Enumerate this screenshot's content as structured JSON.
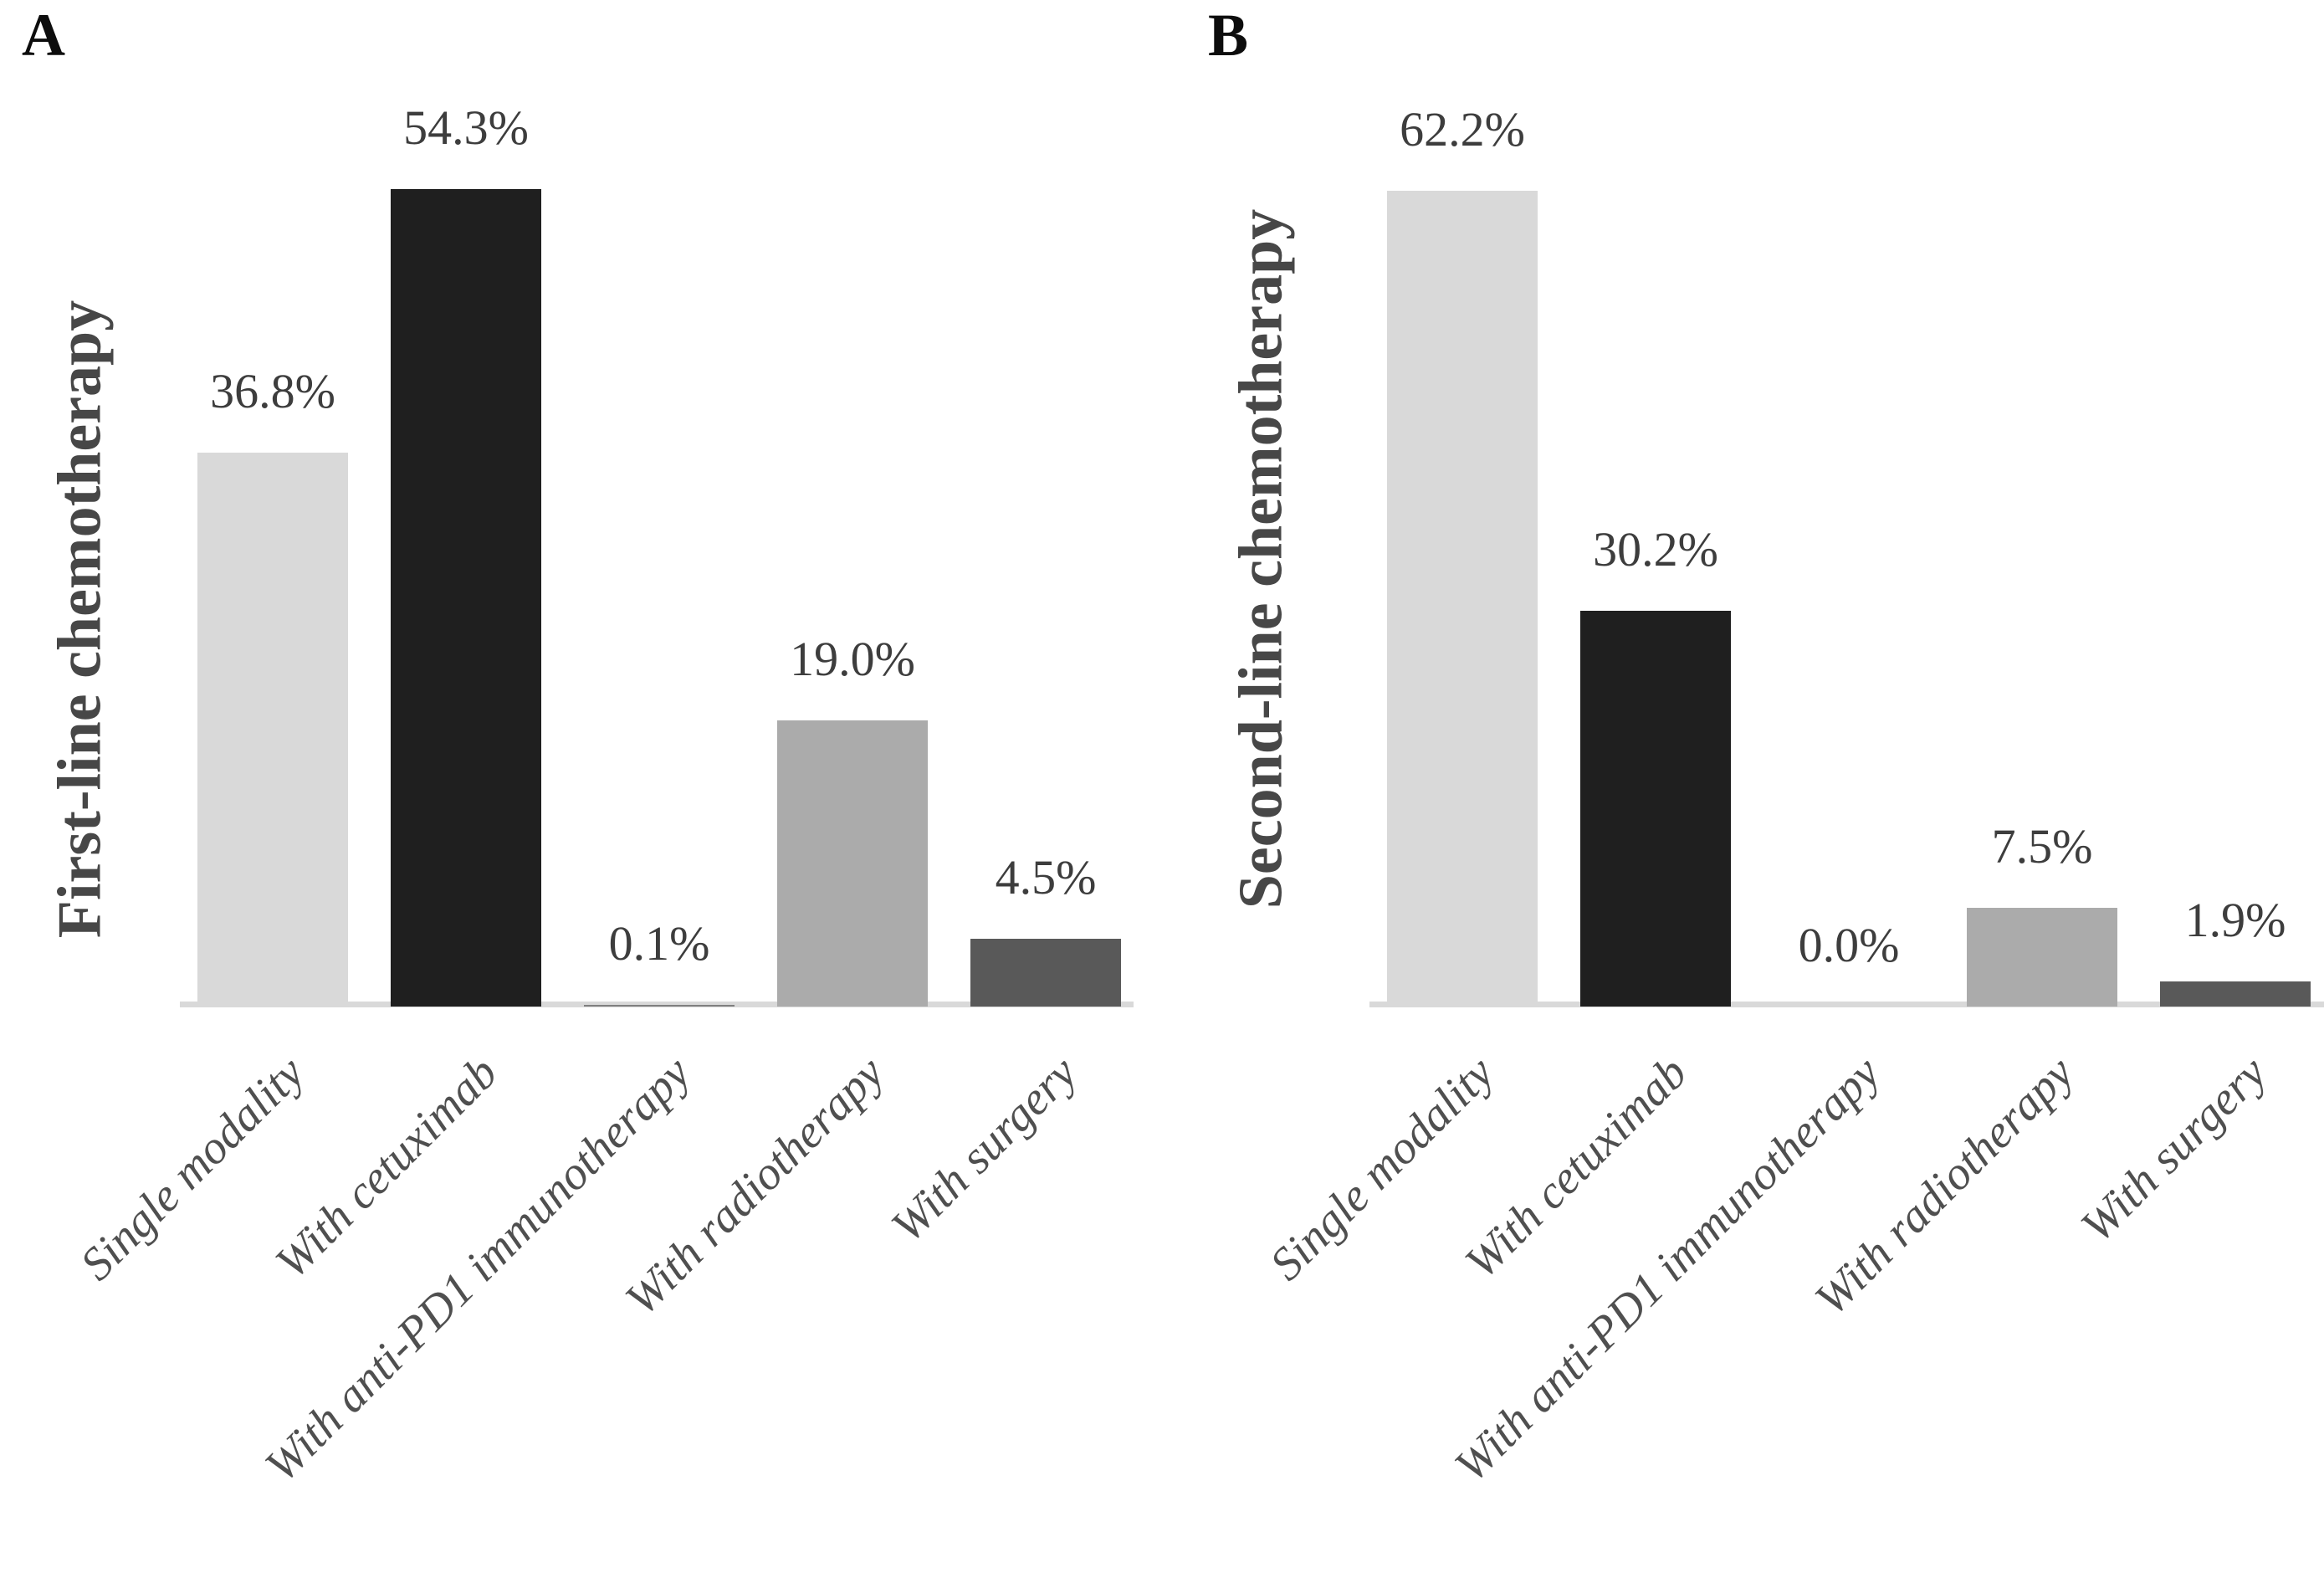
{
  "figure_background": "#ffffff",
  "axis_line_color": "#d9d9d9",
  "chart_data": [
    {
      "type": "bar",
      "panel_label": "A",
      "title": "",
      "xlabel": "",
      "ylabel": "First-line chemotherapy",
      "categories": [
        "Single modality",
        "With cetuximab",
        "With anti-PD1 immunotherapy",
        "With radiotherapy",
        "With surgery"
      ],
      "values": [
        36.8,
        54.3,
        0.1,
        19.0,
        4.5
      ],
      "data_labels": [
        "36.8%",
        "54.3%",
        "0.1%",
        "19.0%",
        "4.5%"
      ],
      "bar_colors": [
        "#d9d9d9",
        "#1f1f1f",
        "#808080",
        "#ababab",
        "#595959"
      ],
      "value_unit": "%",
      "grid": false,
      "legend": false,
      "y_axis_visible": false,
      "data_label_position": "above-bar",
      "x_tick_rotation_deg": 45
    },
    {
      "type": "bar",
      "panel_label": "B",
      "title": "",
      "xlabel": "",
      "ylabel": "Second-line chemotherapy",
      "categories": [
        "Single modality",
        "With cetuximab",
        "With anti-PD1 immunotherapy",
        "With radiotherapy",
        "With surgery"
      ],
      "values": [
        62.2,
        30.2,
        0.0,
        7.5,
        1.9
      ],
      "data_labels": [
        "62.2%",
        "30.2%",
        "0.0%",
        "7.5%",
        "1.9%"
      ],
      "bar_colors": [
        "#d9d9d9",
        "#1f1f1f",
        "#808080",
        "#ababab",
        "#595959"
      ],
      "value_unit": "%",
      "grid": false,
      "legend": false,
      "y_axis_visible": false,
      "data_label_position": "above-bar",
      "x_tick_rotation_deg": 45
    }
  ]
}
